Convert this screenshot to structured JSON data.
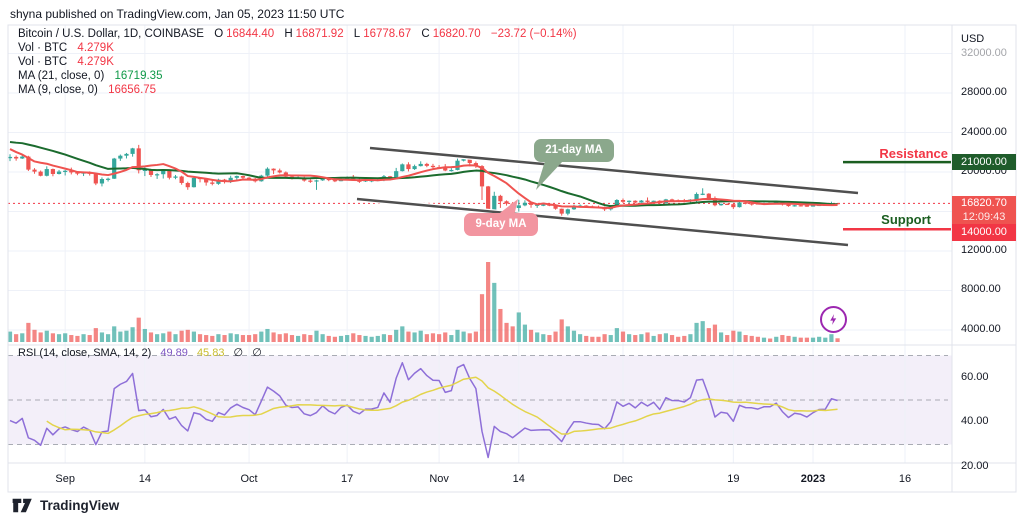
{
  "attribution": "shyna published on TradingView.com, Jan 05, 2023 11:50 UTC",
  "legend": {
    "title": "Bitcoin / U.S. Dollar, 1D, COINBASE",
    "o_label": "O",
    "o": "16844.40",
    "h_label": "H",
    "h": "16871.92",
    "l_label": "L",
    "l": "16778.67",
    "c_label": "C",
    "c": "16820.70",
    "change": "−23.72 (−0.14%)",
    "vol1_label": "Vol · BTC",
    "vol1": "4.279K",
    "vol2_label": "Vol · BTC",
    "vol2": "4.279K",
    "ma21_label": "MA (21, close, 0)",
    "ma21": "16719.35",
    "ma9_label": "MA (9, close, 0)",
    "ma9": "16656.75"
  },
  "rsi_legend": {
    "label": "RSI (14, close, SMA, 14, 2)",
    "value1": "49.89",
    "value2": "45.83",
    "value3": "∅",
    "value4": "∅"
  },
  "annotations_text": {
    "resistance": "Resistance",
    "support": "Support",
    "ma21_callout": "21-day MA",
    "ma9_callout": "9-day MA"
  },
  "price_axis": {
    "currency": "USD",
    "labels": [
      {
        "text": "32000.00",
        "price": 32000,
        "faded": true
      },
      {
        "text": "28000.00",
        "price": 28000
      },
      {
        "text": "24000.00",
        "price": 24000
      },
      {
        "text": "20000.00",
        "price": 20000
      },
      {
        "text": "12000.00",
        "price": 12000
      },
      {
        "text": "8000.00",
        "price": 8000
      },
      {
        "text": "4000.00",
        "price": 4000
      }
    ],
    "resistance_badge": "21000.00",
    "last_badge": {
      "price": "16820.70",
      "countdown": "12:09:43"
    },
    "support_badge": "14000.00"
  },
  "rsi_axis": [
    {
      "text": "60.00",
      "value": 60
    },
    {
      "text": "40.00",
      "value": 40
    },
    {
      "text": "20.00",
      "value": 20
    }
  ],
  "time_axis": [
    {
      "label": "Sep",
      "index": 9
    },
    {
      "label": "14",
      "index": 22
    },
    {
      "label": "Oct",
      "index": 39
    },
    {
      "label": "17",
      "index": 55
    },
    {
      "label": "Nov",
      "index": 70
    },
    {
      "label": "14",
      "index": 83
    },
    {
      "label": "Dec",
      "index": 100
    },
    {
      "label": "19",
      "index": 118
    },
    {
      "label": "2023",
      "index": 131,
      "bold": true
    },
    {
      "label": "16",
      "index": 146
    }
  ],
  "footer": {
    "brand": "TradingView"
  },
  "colors": {
    "candle_up": "#35a79c",
    "candle_down": "#ef5350",
    "ma21": "#1b6b2e",
    "ma9": "#ef5350",
    "channel": "#4f4f4f",
    "rsi_line": "#8e6fd8",
    "rsi_ma": "#e3d44b",
    "rsi_band": "#b39ddb",
    "grid": "#eef1f8",
    "border": "#e0e3eb",
    "dotted_last": "#f23645",
    "resistance_line": "#1b5e20",
    "support_line": "#f23645",
    "callout_green": "#8ba88c",
    "callout_pink": "#f295a0",
    "lightning": "#9c27b0"
  },
  "chart_data": {
    "type": "candlestick",
    "title": "Bitcoin / U.S. Dollar, 1D, COINBASE",
    "ylabel": "USD",
    "price_ylim": [
      2500,
      34900
    ],
    "rsi_guides": [
      70,
      50,
      30
    ],
    "levels": {
      "resistance": 21000,
      "support": 14000,
      "last_price": 16820.7
    },
    "last": {
      "open": 16844.4,
      "high": 16871.92,
      "low": 16778.67,
      "close": 16820.7,
      "change": -23.72,
      "change_pct": -0.14
    },
    "indicators": {
      "ma_slow": 21,
      "ma_fast": 9,
      "rsi_period": 14,
      "rsi_sma": 14,
      "rsi_value": 49.89,
      "rsi_sma_value": 45.83
    },
    "preroll_closes": [
      22978,
      22846,
      22630,
      23315,
      22954,
      23175,
      23809,
      23164,
      23948,
      23957,
      24402,
      24424,
      24305,
      24095,
      23854,
      23342,
      23191,
      20830,
      21141,
      21516,
      21398
    ],
    "candles": [
      [
        21398,
        21800,
        21096,
        21529
      ],
      [
        21529,
        21671,
        21145,
        21369
      ],
      [
        21369,
        21819,
        21322,
        21559
      ],
      [
        21559,
        21642,
        20107,
        20241
      ],
      [
        20241,
        20392,
        19823,
        20038
      ],
      [
        20038,
        20151,
        19558,
        19616
      ],
      [
        19616,
        20576,
        19554,
        20298
      ],
      [
        20298,
        20349,
        19567,
        19799
      ],
      [
        19799,
        20211,
        19751,
        20050
      ],
      [
        20050,
        20215,
        19651,
        20127
      ],
      [
        20127,
        20444,
        19755,
        19953
      ],
      [
        19953,
        20056,
        19674,
        19832
      ],
      [
        19832,
        20029,
        19590,
        19988
      ],
      [
        19988,
        20065,
        19637,
        19812
      ],
      [
        19812,
        19891,
        18668,
        18837
      ],
      [
        18837,
        19454,
        18540,
        19290
      ],
      [
        19290,
        19430,
        19034,
        19320
      ],
      [
        19320,
        21430,
        19296,
        21360
      ],
      [
        21360,
        21774,
        21127,
        21651
      ],
      [
        21651,
        21930,
        21372,
        21835
      ],
      [
        21835,
        22447,
        21555,
        22395
      ],
      [
        22395,
        22747,
        19856,
        20173
      ],
      [
        20173,
        20500,
        19588,
        20226
      ],
      [
        20226,
        20321,
        19500,
        19701
      ],
      [
        19701,
        19882,
        19300,
        19775
      ],
      [
        19775,
        20180,
        19335,
        20113
      ],
      [
        20113,
        20119,
        19247,
        19419
      ],
      [
        19419,
        19700,
        19270,
        19544
      ],
      [
        19544,
        19622,
        18715,
        18890
      ],
      [
        18890,
        19022,
        18200,
        18461
      ],
      [
        18461,
        19500,
        18425,
        19401
      ],
      [
        19401,
        19480,
        18950,
        19297
      ],
      [
        19297,
        19320,
        18620,
        18937
      ],
      [
        18937,
        19187,
        18650,
        18802
      ],
      [
        18802,
        19318,
        18700,
        19227
      ],
      [
        19227,
        19300,
        18833,
        19079
      ],
      [
        19079,
        19620,
        18880,
        19412
      ],
      [
        19412,
        19640,
        19174,
        19591
      ],
      [
        19591,
        19630,
        19155,
        19422
      ],
      [
        19422,
        19480,
        19168,
        19312
      ],
      [
        19312,
        19397,
        18940,
        19059
      ],
      [
        19059,
        19718,
        19020,
        19633
      ],
      [
        19633,
        20475,
        19517,
        20336
      ],
      [
        20336,
        20370,
        19790,
        20160
      ],
      [
        20160,
        20344,
        19855,
        19955
      ],
      [
        19955,
        20060,
        19330,
        19527
      ],
      [
        19527,
        19627,
        19240,
        19415
      ],
      [
        19415,
        19558,
        19317,
        19440
      ],
      [
        19440,
        19525,
        19020,
        19132
      ],
      [
        19132,
        19269,
        18900,
        19051
      ],
      [
        19051,
        19230,
        18190,
        19153
      ],
      [
        19153,
        19513,
        19100,
        19376
      ],
      [
        19376,
        19398,
        19070,
        19176
      ],
      [
        19176,
        19226,
        18975,
        19068
      ],
      [
        19068,
        19421,
        19063,
        19260
      ],
      [
        19260,
        19550,
        19156,
        19333
      ],
      [
        19333,
        19697,
        19091,
        19126
      ],
      [
        19126,
        19348,
        18900,
        19042
      ],
      [
        19042,
        19350,
        18990,
        19163
      ],
      [
        19163,
        19257,
        18967,
        19166
      ],
      [
        19166,
        19288,
        19070,
        19203
      ],
      [
        19203,
        19695,
        19072,
        19568
      ],
      [
        19568,
        19605,
        19135,
        19330
      ],
      [
        19330,
        20415,
        19240,
        20086
      ],
      [
        20086,
        20864,
        20055,
        20775
      ],
      [
        20775,
        20988,
        20060,
        20295
      ],
      [
        20295,
        20745,
        20210,
        20595
      ],
      [
        20595,
        21085,
        20560,
        20818
      ],
      [
        20818,
        20931,
        20485,
        20623
      ],
      [
        20623,
        20827,
        20238,
        20490
      ],
      [
        20490,
        20700,
        20330,
        20482
      ],
      [
        20482,
        20800,
        20080,
        20151
      ],
      [
        20151,
        20394,
        20046,
        20208
      ],
      [
        20208,
        21480,
        20168,
        21148
      ],
      [
        21148,
        21473,
        21070,
        21301
      ],
      [
        21301,
        21360,
        20570,
        20908
      ],
      [
        20908,
        21069,
        20403,
        20594
      ],
      [
        20594,
        20700,
        17166,
        18541
      ],
      [
        18541,
        18590,
        15588,
        15880
      ],
      [
        15880,
        17999,
        15787,
        17586
      ],
      [
        17586,
        17690,
        16363,
        17034
      ],
      [
        17034,
        17122,
        16600,
        16799
      ],
      [
        16799,
        16954,
        16229,
        16353
      ],
      [
        16353,
        17190,
        15815,
        16619
      ],
      [
        16619,
        17134,
        16530,
        16884
      ],
      [
        16884,
        16990,
        16378,
        16669
      ],
      [
        16669,
        16753,
        16360,
        16692
      ],
      [
        16692,
        16780,
        16540,
        16700
      ],
      [
        16700,
        16816,
        16540,
        16697
      ],
      [
        16697,
        16746,
        16180,
        16280
      ],
      [
        16280,
        16304,
        15476,
        15782
      ],
      [
        15782,
        16290,
        15616,
        16222
      ],
      [
        16222,
        16700,
        16160,
        16603
      ],
      [
        16603,
        16715,
        16438,
        16603
      ],
      [
        16603,
        16640,
        16390,
        16522
      ],
      [
        16522,
        16603,
        16400,
        16464
      ],
      [
        16464,
        16594,
        16330,
        16444
      ],
      [
        16444,
        16487,
        16050,
        16217
      ],
      [
        16217,
        16530,
        16100,
        16444
      ],
      [
        16444,
        17250,
        16430,
        17163
      ],
      [
        17163,
        17310,
        16865,
        16978
      ],
      [
        16978,
        17120,
        16790,
        17088
      ],
      [
        17088,
        17135,
        16860,
        16908
      ],
      [
        16908,
        17160,
        16880,
        17105
      ],
      [
        17105,
        17420,
        16870,
        16966
      ],
      [
        16966,
        17110,
        16905,
        17089
      ],
      [
        17089,
        17142,
        16730,
        16836
      ],
      [
        16836,
        17280,
        16820,
        17224
      ],
      [
        17224,
        17295,
        17070,
        17128
      ],
      [
        17128,
        17225,
        17100,
        17127
      ],
      [
        17127,
        17270,
        16940,
        17085
      ],
      [
        17085,
        17240,
        16880,
        17209
      ],
      [
        17209,
        17930,
        16890,
        17774
      ],
      [
        17774,
        18350,
        17660,
        17803
      ],
      [
        17803,
        17855,
        17275,
        17357
      ],
      [
        17357,
        17525,
        16527,
        16632
      ],
      [
        16632,
        16795,
        16580,
        16776
      ],
      [
        16776,
        16820,
        16660,
        16738
      ],
      [
        16738,
        16810,
        16260,
        16439
      ],
      [
        16439,
        17040,
        16400,
        16903
      ],
      [
        16903,
        16925,
        16725,
        16824
      ],
      [
        16824,
        16870,
        16595,
        16818
      ],
      [
        16818,
        16870,
        16730,
        16778
      ],
      [
        16778,
        16870,
        16730,
        16837
      ],
      [
        16837,
        16865,
        16730,
        16836
      ],
      [
        16836,
        16945,
        16800,
        16919
      ],
      [
        16919,
        16965,
        16600,
        16706
      ],
      [
        16706,
        16785,
        16480,
        16547
      ],
      [
        16547,
        16665,
        16490,
        16633
      ],
      [
        16633,
        16680,
        16500,
        16607
      ],
      [
        16607,
        16645,
        16470,
        16542
      ],
      [
        16542,
        16632,
        16500,
        16617
      ],
      [
        16617,
        16772,
        16550,
        16672
      ],
      [
        16672,
        16780,
        16605,
        16675
      ],
      [
        16675,
        16991,
        16652,
        16850
      ],
      [
        16844,
        16872,
        16779,
        16821
      ]
    ],
    "volumes_k": [
      12,
      9,
      10,
      22,
      14,
      11,
      13,
      10,
      9,
      10,
      8,
      7,
      9,
      8,
      16,
      11,
      9,
      18,
      12,
      13,
      17,
      28,
      15,
      11,
      9,
      10,
      12,
      9,
      13,
      14,
      12,
      9,
      8,
      7,
      9,
      8,
      10,
      9,
      8,
      8,
      9,
      12,
      15,
      11,
      9,
      10,
      8,
      7,
      9,
      8,
      13,
      9,
      7,
      6,
      7,
      8,
      10,
      8,
      7,
      6,
      7,
      9,
      8,
      14,
      18,
      12,
      11,
      13,
      9,
      10,
      9,
      11,
      8,
      14,
      12,
      10,
      12,
      55,
      92,
      68,
      38,
      22,
      18,
      34,
      20,
      14,
      11,
      9,
      8,
      12,
      26,
      18,
      13,
      9,
      7,
      6,
      6,
      9,
      8,
      16,
      12,
      9,
      8,
      9,
      11,
      7,
      9,
      10,
      8,
      6,
      7,
      9,
      22,
      24,
      16,
      20,
      11,
      8,
      13,
      12,
      8,
      7,
      6,
      5,
      4,
      6,
      8,
      7,
      6,
      5,
      5,
      5,
      6,
      5,
      9,
      4.279
    ],
    "drawings": {
      "channel_upper": [
        [
          370,
          148
        ],
        [
          858,
          193
        ]
      ],
      "channel_lower": [
        [
          357,
          199
        ],
        [
          848,
          245
        ]
      ],
      "green_tail": [
        [
          545,
          161
        ],
        [
          563,
          161
        ],
        [
          536,
          190
        ]
      ],
      "pink_tail": [
        [
          496,
          216
        ],
        [
          514,
          216
        ],
        [
          518,
          199
        ]
      ]
    }
  }
}
